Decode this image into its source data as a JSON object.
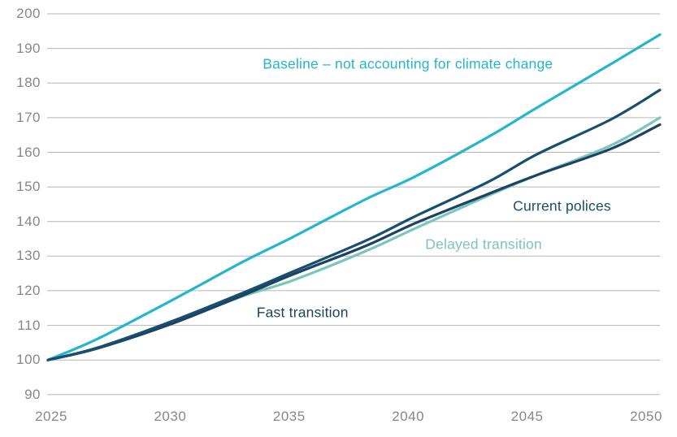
{
  "page": {
    "background": "#ffffff",
    "axis_text_color": "#85878a",
    "gridline_color": "#b4b6b8"
  },
  "chart_data": {
    "type": "line",
    "title": "",
    "xlabel": "",
    "ylabel": "",
    "xlim": [
      2025,
      2050
    ],
    "ylim": [
      90,
      200
    ],
    "grid": "horizontal-only",
    "legend_position": "inline-annotations",
    "xticks": [
      "2025",
      "2030",
      "2035",
      "2040",
      "2045",
      "2050"
    ],
    "yticks": [
      "200",
      "190",
      "180",
      "170",
      "160",
      "150",
      "140",
      "130",
      "120",
      "110",
      "100",
      "90"
    ],
    "x": [
      2025,
      2027,
      2030,
      2033,
      2035,
      2038,
      2040,
      2043,
      2045,
      2048,
      2050
    ],
    "series": [
      {
        "id": "baseline",
        "name": "Baseline – not accounting for climate change",
        "color": "#26b6cb",
        "values": [
          100,
          106,
          117,
          128.5,
          135.5,
          146.5,
          153,
          164.5,
          173,
          185.5,
          194
        ]
      },
      {
        "id": "current-polices",
        "name": "Current polices",
        "color": "#174f70",
        "values": [
          100,
          103.5,
          111,
          119.5,
          125.5,
          134.5,
          141.5,
          151.5,
          159.5,
          169.5,
          178
        ]
      },
      {
        "id": "delayed-transition",
        "name": "Delayed transition",
        "color": "#7ac6bd",
        "values": [
          100,
          103.4,
          110.6,
          118.5,
          123,
          131.5,
          138,
          147.5,
          153.5,
          162,
          170
        ]
      },
      {
        "id": "fast-transition",
        "name": "Fast transition",
        "color": "#1d4263",
        "values": [
          100,
          103.3,
          110.3,
          118.8,
          124.7,
          133,
          139.5,
          148,
          153.5,
          161,
          168
        ]
      }
    ],
    "draw_order": [
      "baseline",
      "delayed-transition",
      "fast-transition",
      "current-polices"
    ],
    "annotations": [
      {
        "series": "baseline",
        "text": "Baseline – not accounting for climate change",
        "year": 2039.7,
        "value": 185.5,
        "color": "#26b6cb"
      },
      {
        "series": "current-polices",
        "text": "Current polices",
        "year": 2046.0,
        "value": 144.4,
        "color": "#174f70"
      },
      {
        "series": "delayed-transition",
        "text": "Delayed transition",
        "year": 2042.8,
        "value": 133.4,
        "color": "#7ac6bd"
      },
      {
        "series": "fast-transition",
        "text": "Fast transition",
        "year": 2035.4,
        "value": 113.7,
        "color": "#1d4263"
      }
    ]
  }
}
